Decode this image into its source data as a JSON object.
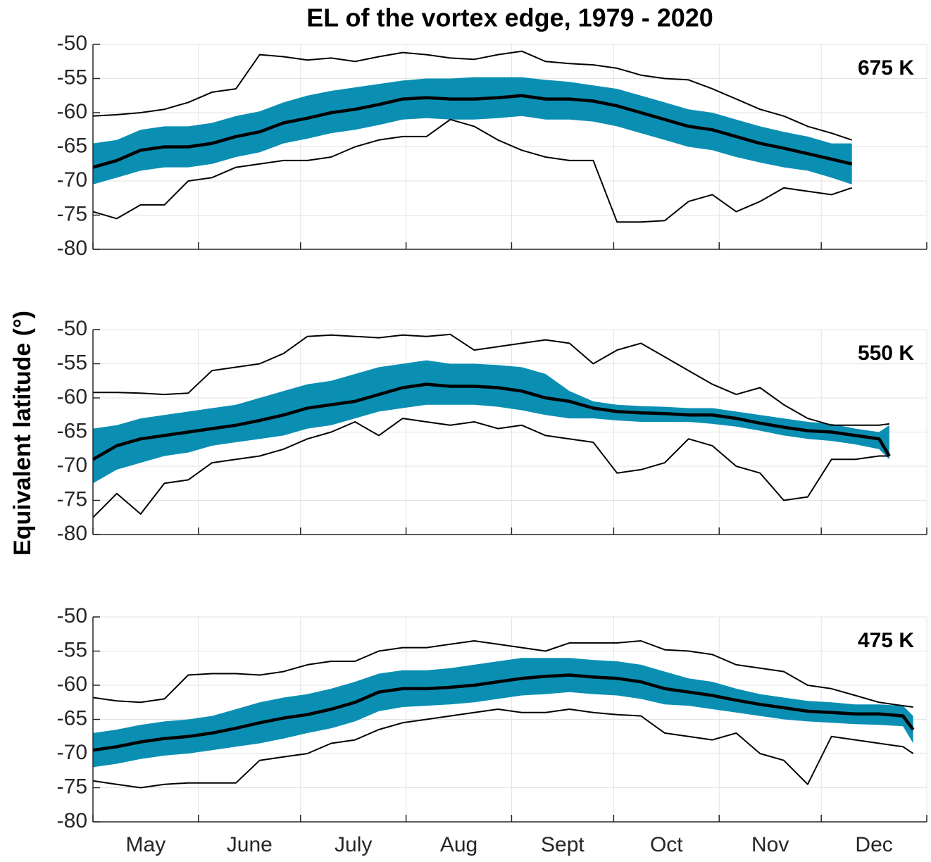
{
  "chart_data": {
    "type": "band-line",
    "title": "EL of the vortex edge, 1979 - 2020",
    "ylabel": "Equivalent latitude (°)",
    "xlim": [
      0,
      245
    ],
    "xticks": [
      0,
      31,
      61,
      92,
      123,
      153,
      184,
      214,
      245
    ],
    "xticklabels": [
      {
        "value": 15.5,
        "label": "May"
      },
      {
        "value": 46,
        "label": "June"
      },
      {
        "value": 76.5,
        "label": "July"
      },
      {
        "value": 107.5,
        "label": "Aug"
      },
      {
        "value": 138,
        "label": "Sept"
      },
      {
        "value": 168.5,
        "label": "Oct"
      },
      {
        "value": 199,
        "label": "Nov"
      },
      {
        "value": 229.5,
        "label": "Dec"
      }
    ],
    "ylim": [
      -80,
      -50
    ],
    "yticks": [
      -80,
      -75,
      -70,
      -65,
      -60,
      -55,
      -50
    ],
    "grid": true,
    "band_color": "#0a8fb3",
    "line_color": "#000000",
    "panels": [
      {
        "label": "675 K",
        "x": [
          0,
          7,
          14,
          21,
          28,
          35,
          42,
          49,
          56,
          63,
          70,
          77,
          84,
          91,
          98,
          105,
          112,
          119,
          126,
          133,
          140,
          147,
          154,
          161,
          168,
          175,
          182,
          189,
          196,
          203,
          210,
          217,
          223
        ],
        "mean": [
          -68,
          -67,
          -65.5,
          -65,
          -65,
          -64.5,
          -63.5,
          -62.8,
          -61.5,
          -60.8,
          -60,
          -59.5,
          -58.8,
          -58,
          -57.8,
          -58,
          -58,
          -57.8,
          -57.5,
          -58,
          -58,
          -58.3,
          -59,
          -60,
          -61,
          -62,
          -62.5,
          -63.5,
          -64.5,
          -65.2,
          -66,
          -66.8,
          -67.5
        ],
        "upper": [
          -64.5,
          -64,
          -62.5,
          -62,
          -62,
          -61.5,
          -60.5,
          -59.8,
          -58.5,
          -57.5,
          -56.8,
          -56.3,
          -55.8,
          -55.3,
          -55,
          -55,
          -54.8,
          -54.8,
          -54.8,
          -55.2,
          -55.5,
          -56,
          -56.5,
          -57.5,
          -58.5,
          -59.5,
          -60,
          -61,
          -62,
          -62.8,
          -63.5,
          -64.5,
          -64.5
        ],
        "lower": [
          -70.5,
          -69.5,
          -68.5,
          -68,
          -68,
          -67.5,
          -66.5,
          -65.8,
          -64.5,
          -63.8,
          -63,
          -62.5,
          -61.8,
          -61,
          -60.8,
          -61,
          -61,
          -60.8,
          -60.5,
          -61,
          -61,
          -61.3,
          -62,
          -63,
          -64,
          -65,
          -65.5,
          -66.5,
          -67.3,
          -68,
          -68.5,
          -69.5,
          -70.5
        ],
        "max": [
          -60.5,
          -60.3,
          -60,
          -59.5,
          -58.5,
          -57,
          -56.5,
          -51.5,
          -51.8,
          -52.3,
          -52,
          -52.5,
          -51.8,
          -51.2,
          -51.5,
          -52,
          -52.2,
          -51.5,
          -51,
          -52.5,
          -52.8,
          -53,
          -53.5,
          -54.5,
          -55,
          -55.2,
          -56.5,
          -58,
          -59.5,
          -60.5,
          -62,
          -63,
          -64
        ],
        "min": [
          -74.5,
          -75.5,
          -73.5,
          -73.5,
          -70,
          -69.5,
          -68,
          -67.5,
          -67,
          -67,
          -66.5,
          -65,
          -64,
          -63.5,
          -63.5,
          -61,
          -62,
          -64,
          -65.5,
          -66.5,
          -67,
          -67,
          -76,
          -76,
          -75.8,
          -73,
          -72,
          -74.5,
          -73,
          -71,
          -71.5,
          -72,
          -71
        ]
      },
      {
        "label": "550 K",
        "x": [
          0,
          7,
          14,
          21,
          28,
          35,
          42,
          49,
          56,
          63,
          70,
          77,
          84,
          91,
          98,
          105,
          112,
          119,
          126,
          133,
          140,
          147,
          154,
          161,
          168,
          175,
          182,
          189,
          196,
          203,
          210,
          217,
          224,
          231,
          234
        ],
        "mean": [
          -69,
          -67,
          -66,
          -65.5,
          -65,
          -64.5,
          -64,
          -63.3,
          -62.5,
          -61.5,
          -61,
          -60.5,
          -59.5,
          -58.5,
          -58,
          -58.3,
          -58.3,
          -58.5,
          -59,
          -60,
          -60.5,
          -61.5,
          -62,
          -62.2,
          -62.3,
          -62.5,
          -62.5,
          -63,
          -63.7,
          -64.3,
          -64.8,
          -65,
          -65.5,
          -66,
          -68.5
        ],
        "upper": [
          -64.5,
          -64,
          -63,
          -62.5,
          -62,
          -61.5,
          -61,
          -60,
          -59,
          -58,
          -57.5,
          -56.5,
          -55.5,
          -55,
          -54.5,
          -55,
          -55,
          -55.2,
          -55.5,
          -56.5,
          -59,
          -60.5,
          -61,
          -61.2,
          -61.3,
          -61.5,
          -61.5,
          -62,
          -62.5,
          -63,
          -63.5,
          -63.8,
          -64.5,
          -65,
          -64
        ],
        "lower": [
          -72.5,
          -70.5,
          -69.5,
          -68.5,
          -68,
          -67,
          -66.5,
          -66,
          -65.5,
          -64.5,
          -64,
          -63,
          -62,
          -61.5,
          -61,
          -61,
          -61,
          -61.3,
          -61.8,
          -62.5,
          -63,
          -63,
          -63.3,
          -63.5,
          -63.5,
          -63.5,
          -63.8,
          -64.2,
          -64.8,
          -65.5,
          -66,
          -66.3,
          -66.8,
          -67.5,
          -69
        ],
        "max": [
          -59.2,
          -59.2,
          -59.3,
          -59.5,
          -59.3,
          -56,
          -55.5,
          -55,
          -53.5,
          -51,
          -50.8,
          -51,
          -51.2,
          -50.8,
          -51,
          -50.7,
          -53,
          -52.5,
          -52,
          -51.5,
          -52,
          -55,
          -53,
          -52,
          -54,
          -56,
          -58,
          -59.5,
          -58.5,
          -61,
          -63,
          -64,
          -64,
          -64,
          -63.8
        ],
        "min": [
          -77.5,
          -74,
          -77,
          -72.5,
          -72,
          -69.5,
          -69,
          -68.5,
          -67.5,
          -66,
          -65,
          -63.5,
          -65.5,
          -63,
          -63.5,
          -64,
          -63.5,
          -64.5,
          -64,
          -65.5,
          -66,
          -66.5,
          -71,
          -70.5,
          -69.5,
          -66,
          -67,
          -70,
          -71,
          -75,
          -74.5,
          -69,
          -69,
          -68.5,
          -68.5
        ]
      },
      {
        "label": "475 K",
        "x": [
          0,
          7,
          14,
          21,
          28,
          35,
          42,
          49,
          56,
          63,
          70,
          77,
          84,
          91,
          98,
          105,
          112,
          119,
          126,
          133,
          140,
          147,
          154,
          161,
          168,
          175,
          182,
          189,
          196,
          203,
          210,
          217,
          224,
          231,
          238,
          241
        ],
        "mean": [
          -69.5,
          -69,
          -68.3,
          -67.8,
          -67.5,
          -67,
          -66.3,
          -65.5,
          -64.8,
          -64.3,
          -63.5,
          -62.5,
          -61,
          -60.5,
          -60.5,
          -60.3,
          -60,
          -59.5,
          -59,
          -58.7,
          -58.5,
          -58.8,
          -59,
          -59.5,
          -60.5,
          -61,
          -61.5,
          -62.2,
          -62.8,
          -63.3,
          -63.8,
          -64,
          -64.2,
          -64.2,
          -64.5,
          -66.5
        ],
        "upper": [
          -67,
          -66.5,
          -65.8,
          -65.3,
          -65,
          -64.5,
          -63.5,
          -62.5,
          -61.8,
          -61.3,
          -60.5,
          -59.5,
          -58.3,
          -57.8,
          -57.8,
          -57.5,
          -57,
          -56.5,
          -56,
          -56,
          -56,
          -56.3,
          -56.5,
          -57,
          -58,
          -59,
          -59.5,
          -60.5,
          -61.3,
          -61.8,
          -62.3,
          -62.5,
          -62.8,
          -62.8,
          -63,
          -64.5
        ],
        "lower": [
          -72,
          -71.5,
          -70.8,
          -70.3,
          -70,
          -69.5,
          -69,
          -68.5,
          -67.8,
          -67,
          -66.3,
          -65.3,
          -63.8,
          -63.2,
          -63,
          -62.8,
          -62.5,
          -62,
          -61.5,
          -61.3,
          -61,
          -61.3,
          -61.5,
          -62,
          -62.8,
          -63,
          -63.5,
          -64,
          -64.5,
          -65,
          -65.3,
          -65.5,
          -65.7,
          -65.8,
          -66,
          -68.5
        ],
        "max": [
          -61.8,
          -62.3,
          -62.5,
          -62,
          -58.5,
          -58.3,
          -58.3,
          -58.5,
          -58,
          -57,
          -56.5,
          -56.5,
          -55,
          -54.5,
          -54.5,
          -54,
          -53.5,
          -54,
          -54.5,
          -55,
          -53.8,
          -53.8,
          -53.8,
          -53.5,
          -54.8,
          -55,
          -55.5,
          -57,
          -57.5,
          -58,
          -60,
          -60.5,
          -61.5,
          -62.5,
          -63,
          -63.2
        ],
        "min": [
          -74,
          -74.5,
          -75,
          -74.5,
          -74.3,
          -74.3,
          -74.3,
          -71,
          -70.5,
          -70,
          -68.5,
          -68,
          -66.5,
          -65.5,
          -65,
          -64.5,
          -64,
          -63.5,
          -64,
          -64,
          -63.5,
          -64,
          -64.3,
          -64.5,
          -67,
          -67.5,
          -68,
          -67,
          -70,
          -71,
          -74.5,
          -67.5,
          -68,
          -68.5,
          -69,
          -70
        ]
      }
    ]
  }
}
